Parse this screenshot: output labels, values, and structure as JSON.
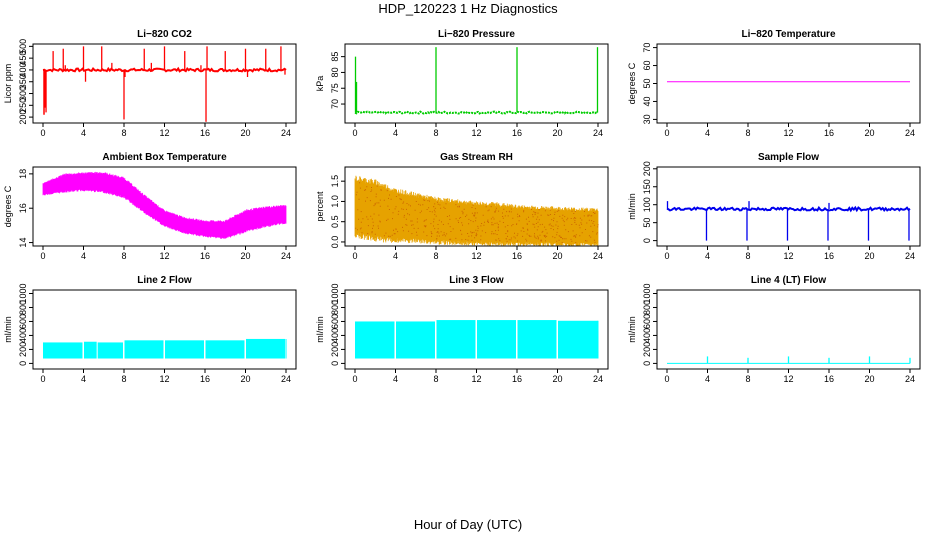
{
  "header": {
    "title": "HDP_120223  1 Hz Diagnostics"
  },
  "footer": {
    "xlabel": "Hour of Day (UTC)"
  },
  "chart_data": [
    {
      "type": "line",
      "title": "Li−820 CO2",
      "ylabel": "Licor ppm",
      "color": "#ff0000",
      "xlim": [
        0,
        24
      ],
      "ylim": [
        175,
        510
      ],
      "xticks": [
        0,
        4,
        8,
        12,
        16,
        20,
        24
      ],
      "yticks": [
        200,
        250,
        300,
        350,
        400,
        450,
        500
      ],
      "pattern": "flat",
      "baseline": 400,
      "noise": 6,
      "spikes": [
        {
          "x": 0.2,
          "y": 240
        },
        {
          "x": 0.3,
          "y": 220
        },
        {
          "x": 1.0,
          "y": 480
        },
        {
          "x": 2.0,
          "y": 490
        },
        {
          "x": 2.2,
          "y": 420
        },
        {
          "x": 4.0,
          "y": 500
        },
        {
          "x": 4.2,
          "y": 350
        },
        {
          "x": 5.8,
          "y": 500
        },
        {
          "x": 6.8,
          "y": 430
        },
        {
          "x": 8.0,
          "y": 190
        },
        {
          "x": 8.1,
          "y": 370
        },
        {
          "x": 10.0,
          "y": 490
        },
        {
          "x": 10.7,
          "y": 430
        },
        {
          "x": 12.0,
          "y": 500
        },
        {
          "x": 14.0,
          "y": 480
        },
        {
          "x": 15.6,
          "y": 420
        },
        {
          "x": 16.1,
          "y": 180
        },
        {
          "x": 16.2,
          "y": 500
        },
        {
          "x": 18.0,
          "y": 480
        },
        {
          "x": 20.0,
          "y": 490
        },
        {
          "x": 20.2,
          "y": 370
        },
        {
          "x": 22.0,
          "y": 490
        },
        {
          "x": 23.5,
          "y": 500
        },
        {
          "x": 23.9,
          "y": 380
        }
      ]
    },
    {
      "type": "line",
      "title": "Li−820 Pressure",
      "ylabel": "kPa",
      "color": "#00cc00",
      "xlim": [
        0,
        24
      ],
      "ylim": [
        64,
        89
      ],
      "xticks": [
        0,
        4,
        8,
        12,
        16,
        20,
        24
      ],
      "yticks": [
        70,
        75,
        80,
        85
      ],
      "pattern": "dashed-flat",
      "baseline": 67.3,
      "noise": 0.3,
      "spikes": [
        {
          "x": 0.05,
          "y": 85
        },
        {
          "x": 0.15,
          "y": 77
        },
        {
          "x": 8.0,
          "y": 88
        },
        {
          "x": 16.0,
          "y": 88
        },
        {
          "x": 23.95,
          "y": 88
        }
      ]
    },
    {
      "type": "line",
      "title": "Li−820 Temperature",
      "ylabel": "degrees C",
      "color": "#ff00ff",
      "xlim": [
        0,
        24
      ],
      "ylim": [
        28,
        72
      ],
      "xticks": [
        0,
        4,
        8,
        12,
        16,
        20,
        24
      ],
      "yticks": [
        30,
        40,
        50,
        60,
        70
      ],
      "pattern": "flat",
      "baseline": 51,
      "noise": 0,
      "spikes": []
    },
    {
      "type": "line",
      "title": "Ambient Box Temperature",
      "ylabel": "degrees C",
      "color": "#ff00ff",
      "xlim": [
        0,
        24
      ],
      "ylim": [
        13.8,
        18.4
      ],
      "xticks": [
        0,
        4,
        8,
        12,
        16,
        20,
        24
      ],
      "yticks": [
        14,
        16,
        18
      ],
      "pattern": "band",
      "band": [
        {
          "x": 0,
          "lo": 16.8,
          "hi": 17.4
        },
        {
          "x": 2,
          "lo": 17.0,
          "hi": 17.9
        },
        {
          "x": 4,
          "lo": 17.1,
          "hi": 18.0
        },
        {
          "x": 6,
          "lo": 17.0,
          "hi": 18.0
        },
        {
          "x": 8,
          "lo": 16.7,
          "hi": 17.7
        },
        {
          "x": 10,
          "lo": 15.8,
          "hi": 16.7
        },
        {
          "x": 12,
          "lo": 15.0,
          "hi": 15.8
        },
        {
          "x": 14,
          "lo": 14.6,
          "hi": 15.4
        },
        {
          "x": 16,
          "lo": 14.4,
          "hi": 15.2
        },
        {
          "x": 18,
          "lo": 14.3,
          "hi": 15.2
        },
        {
          "x": 20,
          "lo": 14.7,
          "hi": 15.8
        },
        {
          "x": 22,
          "lo": 15.0,
          "hi": 16.0
        },
        {
          "x": 24,
          "lo": 15.2,
          "hi": 16.1
        }
      ]
    },
    {
      "type": "scatter",
      "title": "Gas Stream RH",
      "ylabel": "percent",
      "color": "#e6a200",
      "xlim": [
        0,
        24
      ],
      "ylim": [
        -0.1,
        1.85
      ],
      "xticks": [
        0,
        4,
        8,
        12,
        16,
        20,
        24
      ],
      "yticks": [
        0.0,
        0.5,
        1.0,
        1.5
      ],
      "pattern": "band",
      "band": [
        {
          "x": 0,
          "lo": 0.25,
          "hi": 1.5
        },
        {
          "x": 2,
          "lo": 0.15,
          "hi": 1.4
        },
        {
          "x": 4,
          "lo": 0.1,
          "hi": 1.2
        },
        {
          "x": 6,
          "lo": 0.08,
          "hi": 1.1
        },
        {
          "x": 8,
          "lo": 0.05,
          "hi": 1.0
        },
        {
          "x": 10,
          "lo": 0.03,
          "hi": 0.95
        },
        {
          "x": 12,
          "lo": 0.02,
          "hi": 0.9
        },
        {
          "x": 14,
          "lo": 0.0,
          "hi": 0.88
        },
        {
          "x": 16,
          "lo": 0.0,
          "hi": 0.82
        },
        {
          "x": 18,
          "lo": 0.0,
          "hi": 0.8
        },
        {
          "x": 20,
          "lo": -0.02,
          "hi": 0.78
        },
        {
          "x": 22,
          "lo": -0.02,
          "hi": 0.76
        },
        {
          "x": 24,
          "lo": -0.02,
          "hi": 0.75
        }
      ]
    },
    {
      "type": "line",
      "title": "Sample Flow",
      "ylabel": "ml/min",
      "color": "#0000ee",
      "xlim": [
        0,
        24
      ],
      "ylim": [
        -15,
        205
      ],
      "xticks": [
        0,
        4,
        8,
        12,
        16,
        20,
        24
      ],
      "yticks": [
        0,
        50,
        100,
        150,
        200
      ],
      "pattern": "flat",
      "baseline": 88,
      "noise": 4,
      "spikes": [
        {
          "x": 0.05,
          "y": 110
        },
        {
          "x": 3.9,
          "y": 0
        },
        {
          "x": 7.9,
          "y": 0
        },
        {
          "x": 8.1,
          "y": 110
        },
        {
          "x": 11.9,
          "y": 0
        },
        {
          "x": 15.9,
          "y": 0
        },
        {
          "x": 16.0,
          "y": 105
        },
        {
          "x": 19.9,
          "y": 0
        },
        {
          "x": 23.9,
          "y": 0
        }
      ]
    },
    {
      "type": "area",
      "title": "Line 2 Flow",
      "ylabel": "ml/min",
      "color": "#00ffff",
      "xlim": [
        0,
        24
      ],
      "ylim": [
        -80,
        1050
      ],
      "xticks": [
        0,
        4,
        8,
        12,
        16,
        20,
        24
      ],
      "yticks": [
        0,
        200,
        400,
        600,
        800,
        1000
      ],
      "pattern": "blocks",
      "block_low": 70,
      "blocks": [
        {
          "x0": 0,
          "x1": 3.9,
          "top": 300
        },
        {
          "x0": 4.05,
          "x1": 5.3,
          "top": 310
        },
        {
          "x0": 5.4,
          "x1": 7.9,
          "top": 300
        },
        {
          "x0": 8.05,
          "x1": 11.9,
          "top": 330
        },
        {
          "x0": 12.05,
          "x1": 15.9,
          "top": 330
        },
        {
          "x0": 16.05,
          "x1": 19.9,
          "top": 330
        },
        {
          "x0": 20.05,
          "x1": 23.9,
          "top": 350
        }
      ]
    },
    {
      "type": "area",
      "title": "Line 3 Flow",
      "ylabel": "ml/min",
      "color": "#00ffff",
      "xlim": [
        0,
        24
      ],
      "ylim": [
        -80,
        1050
      ],
      "xticks": [
        0,
        4,
        8,
        12,
        16,
        20,
        24
      ],
      "yticks": [
        0,
        200,
        400,
        600,
        800,
        1000
      ],
      "pattern": "blocks",
      "block_low": 70,
      "blocks": [
        {
          "x0": 0,
          "x1": 3.9,
          "top": 600
        },
        {
          "x0": 4.05,
          "x1": 7.9,
          "top": 600
        },
        {
          "x0": 8.05,
          "x1": 11.9,
          "top": 620
        },
        {
          "x0": 12.05,
          "x1": 15.9,
          "top": 620
        },
        {
          "x0": 16.05,
          "x1": 19.9,
          "top": 620
        },
        {
          "x0": 20.05,
          "x1": 24,
          "top": 610
        }
      ]
    },
    {
      "type": "line",
      "title": "Line 4 (LT) Flow",
      "ylabel": "ml/min",
      "color": "#00ffff",
      "xlim": [
        0,
        24
      ],
      "ylim": [
        -80,
        1050
      ],
      "xticks": [
        0,
        4,
        8,
        12,
        16,
        20,
        24
      ],
      "yticks": [
        0,
        200,
        400,
        600,
        800,
        1000
      ],
      "pattern": "flat",
      "baseline": 0,
      "noise": 0,
      "spikes": [
        {
          "x": 4.0,
          "y": 100
        },
        {
          "x": 8.0,
          "y": 80
        },
        {
          "x": 12.0,
          "y": 100
        },
        {
          "x": 16.0,
          "y": 80
        },
        {
          "x": 20.0,
          "y": 100
        },
        {
          "x": 24.0,
          "y": 80
        }
      ]
    }
  ]
}
